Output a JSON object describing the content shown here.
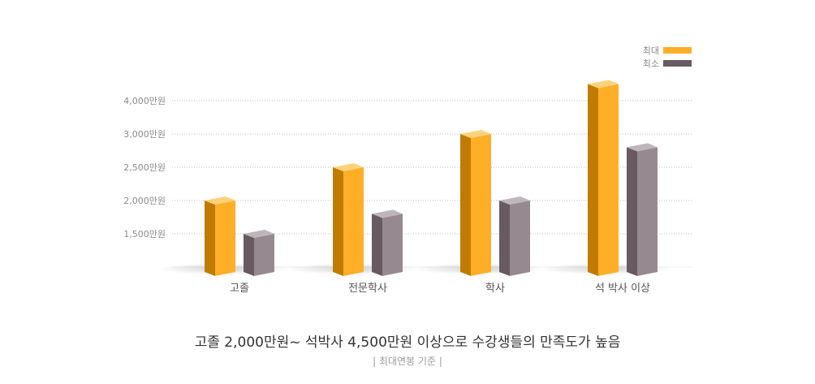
{
  "chart_data": {
    "type": "bar",
    "categories": [
      "고졸",
      "전문학사",
      "학사",
      "석 박사 이상"
    ],
    "y_ticks": [
      1500,
      2000,
      2500,
      3000,
      4000
    ],
    "y_tick_labels": [
      "1,500만원",
      "2,000만원",
      "2,500만원",
      "3,000만원",
      "4,000만원"
    ],
    "series": [
      {
        "name": "최대",
        "color": "#ffae27",
        "values": [
          2000,
          2500,
          3000,
          4500
        ]
      },
      {
        "name": "최소",
        "color": "#675a60",
        "values": [
          1500,
          1800,
          2000,
          2800
        ]
      }
    ],
    "grid": true,
    "legend_placement": "top-right",
    "title": "고졸 2,000만원~ 석박사 4,500만원 이상으로 수강생들의 만족도가 높음",
    "subtitle": "|   최대연봉 기준   |"
  }
}
